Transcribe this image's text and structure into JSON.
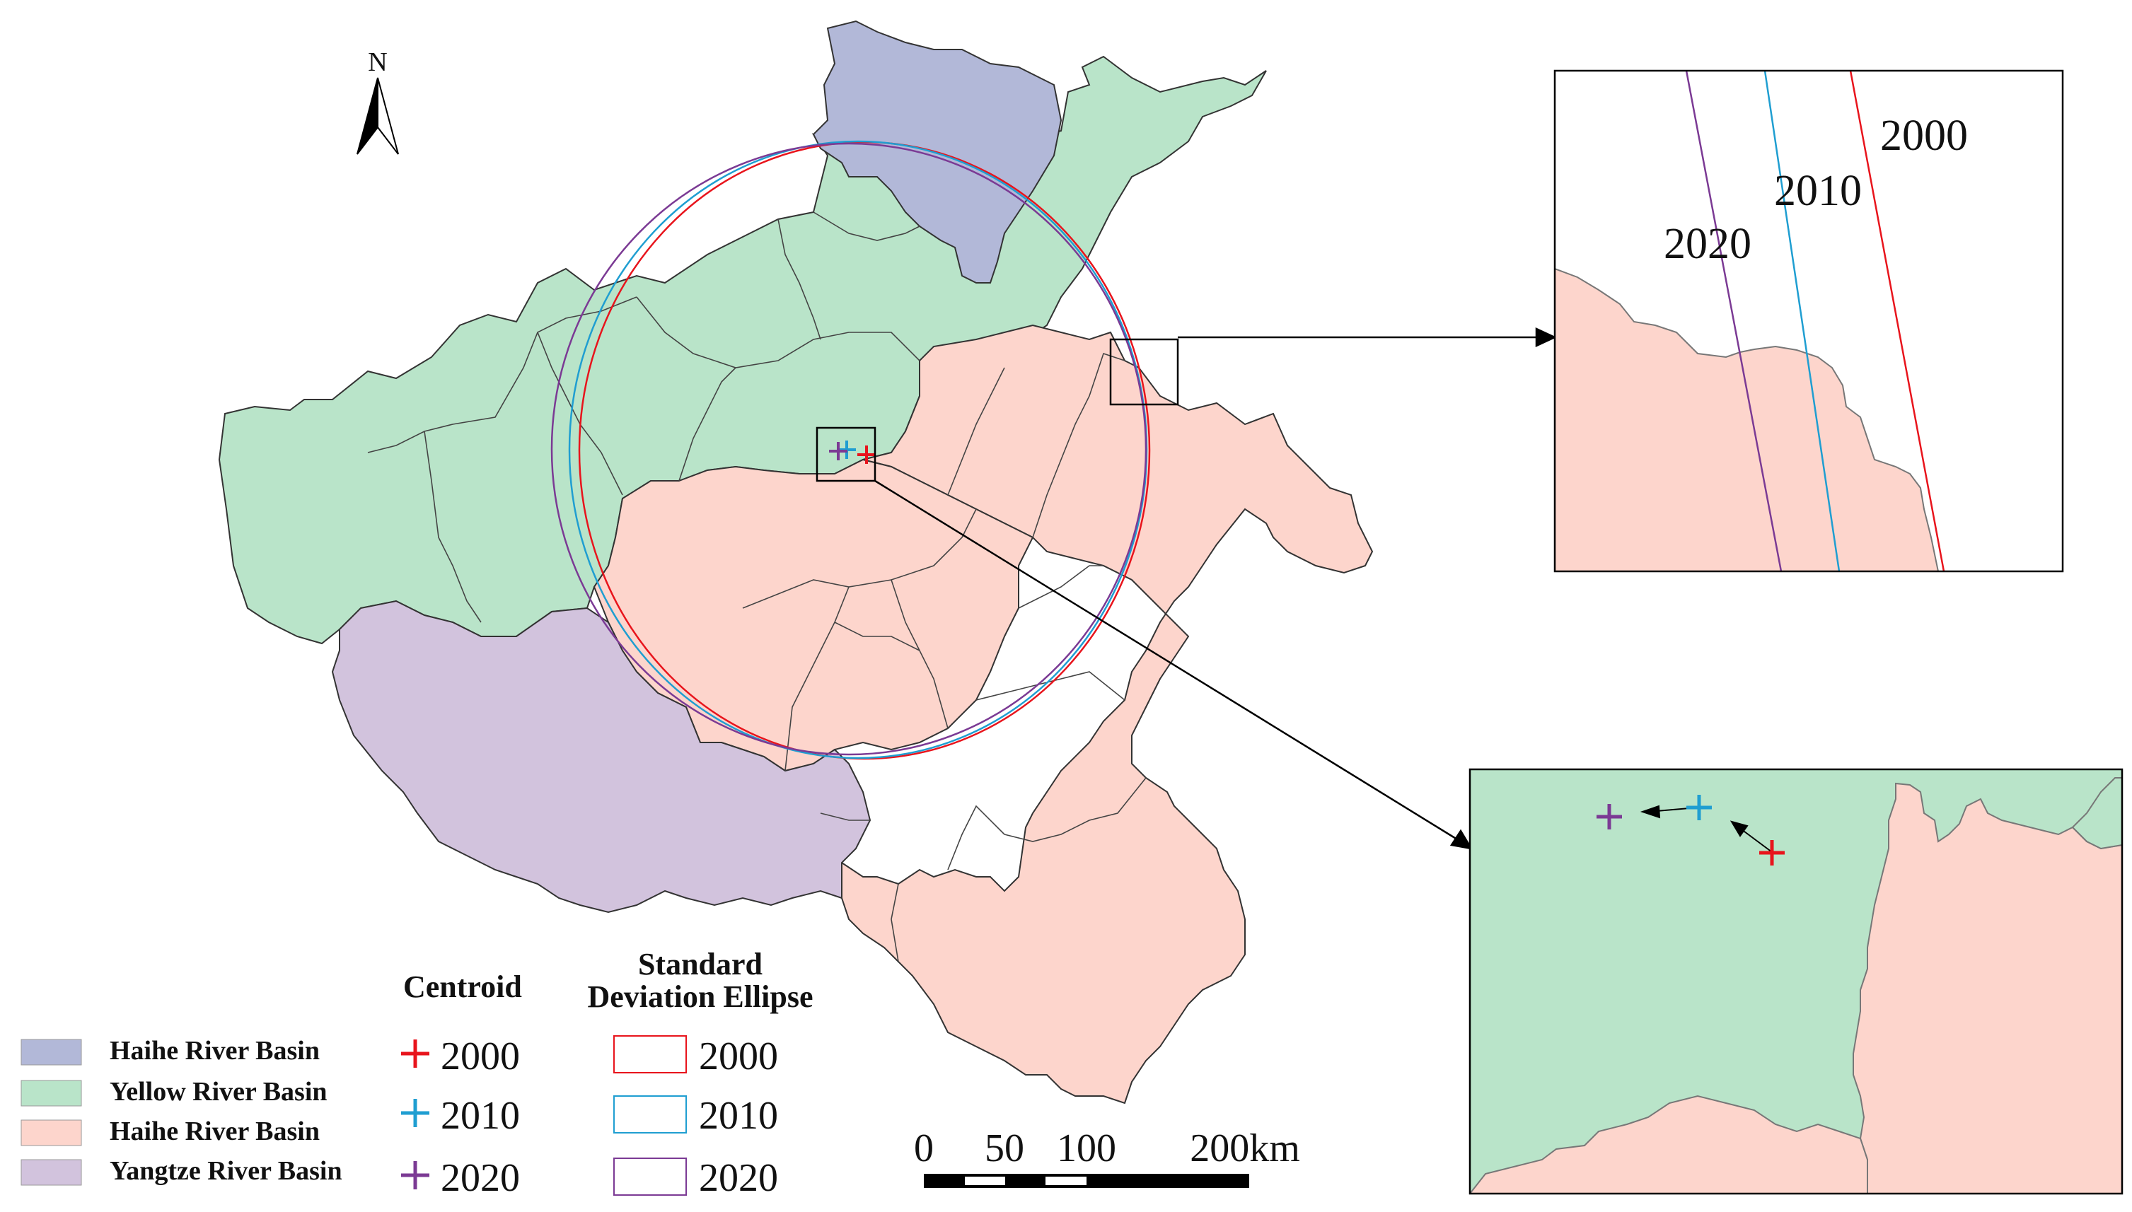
{
  "north_arrow": {
    "label": "N"
  },
  "basins": [
    {
      "id": "haihe",
      "label": "Haihe River Basin",
      "color": "#b2b8d8"
    },
    {
      "id": "yellow",
      "label": "Yellow River Basin",
      "color": "#b9e4c9"
    },
    {
      "id": "huaihe",
      "label": "Haihe River Basin",
      "color": "#fdd5cc"
    },
    {
      "id": "yangtze",
      "label": "Yangtze River Basin",
      "color": "#d2c3dd"
    }
  ],
  "centroid_legend": {
    "title": "Centroid",
    "items": [
      {
        "year": "2000",
        "color": "#e8141c"
      },
      {
        "year": "2010",
        "color": "#1f9ed1"
      },
      {
        "year": "2020",
        "color": "#7b3a94"
      }
    ]
  },
  "ellipse_legend": {
    "title_line1": "Standard",
    "title_line2": "Deviation Ellipse",
    "items": [
      {
        "year": "2000",
        "color": "#e8141c"
      },
      {
        "year": "2010",
        "color": "#1f9ed1"
      },
      {
        "year": "2020",
        "color": "#7b3a94"
      }
    ]
  },
  "scale_bar": {
    "labels": [
      "0",
      "50",
      "100",
      "200km"
    ]
  },
  "inset_ellipse_labels": [
    "2000",
    "2010",
    "2020"
  ]
}
